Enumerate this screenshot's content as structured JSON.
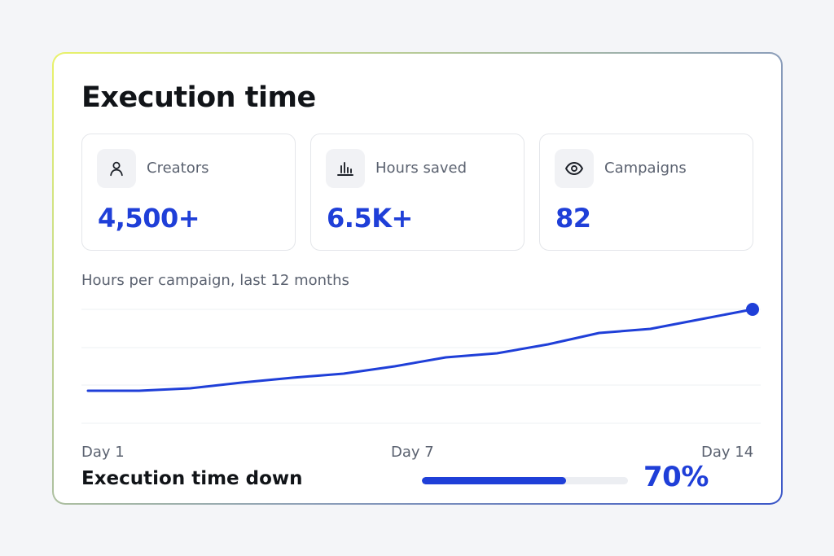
{
  "card": {
    "title": "Execution time"
  },
  "stats": [
    {
      "icon": "user-icon",
      "label": "Creators",
      "value": "4,500+"
    },
    {
      "icon": "bar-chart-icon",
      "label": "Hours saved",
      "value": "6.5K+"
    },
    {
      "icon": "eye-icon",
      "label": "Campaigns",
      "value": "82"
    }
  ],
  "chart_data": {
    "type": "line",
    "subtitle": "Hours per campaign, last 12 months",
    "x": [
      1,
      2,
      3,
      4,
      5,
      6,
      7,
      8,
      9,
      10,
      11,
      12,
      13,
      14
    ],
    "x_tick_labels": [
      {
        "x": 1,
        "label": "Day 1"
      },
      {
        "x": 7,
        "label": "Day 7"
      },
      {
        "x": 14,
        "label": "Day 14"
      }
    ],
    "series": [
      {
        "values": [
          0.0,
          0.0,
          0.03,
          0.1,
          0.16,
          0.21,
          0.3,
          0.41,
          0.46,
          0.57,
          0.71,
          0.76,
          0.88,
          1.0
        ]
      }
    ],
    "ylim": [
      -0.4,
      1.0
    ],
    "grid": true,
    "end_marker": true,
    "color": "#1f3fd8"
  },
  "footer": {
    "label": "Execution time down",
    "percent_label": "70%",
    "progress": 0.7,
    "accent": "#1f3fd8"
  }
}
